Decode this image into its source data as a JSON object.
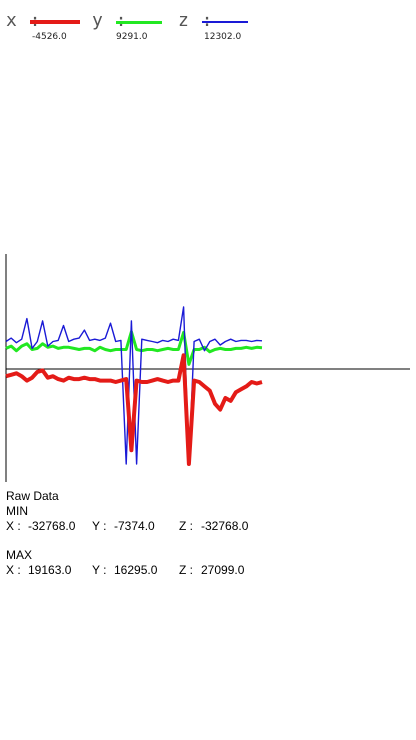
{
  "legend": {
    "x": {
      "letter": "x :",
      "value": "-4526.0",
      "color": "#e41b17"
    },
    "y": {
      "letter": "y :",
      "value": "9291.0",
      "color": "#22e822"
    },
    "z": {
      "letter": "z :",
      "value": "12302.0",
      "color": "#1a1ad6"
    }
  },
  "raw": {
    "title": "Raw Data",
    "min": {
      "title": "MIN",
      "x_label": "X :",
      "x_value": "-32768.0",
      "y_label": "Y :",
      "y_value": "-7374.0",
      "z_label": "Z :",
      "z_value": "-32768.0"
    },
    "max": {
      "title": "MAX",
      "x_label": "X :",
      "x_value": "19163.0",
      "y_label": "Y :",
      "y_value": "16295.0",
      "z_label": "Z :",
      "z_value": "27099.0"
    }
  },
  "chart_data": {
    "type": "line",
    "title": "",
    "xlabel": "",
    "ylabel": "",
    "ylim": [
      -32768,
      32768
    ],
    "grid": false,
    "legend_placement": "top-left",
    "series": [
      {
        "color": "#e41b17",
        "values": [
          -2500,
          -2000,
          -1500,
          -2500,
          -4000,
          -3000,
          -1000,
          -500,
          -3000,
          -2500,
          -3500,
          -4000,
          -3000,
          -3500,
          -3500,
          -3000,
          -3500,
          -3500,
          -4000,
          -4000,
          -4000,
          -4500,
          -4000,
          -3500,
          -28000,
          -4000,
          -4500,
          -4500,
          -4000,
          -3500,
          -4000,
          -4500,
          -4000,
          -4000,
          6000,
          -32768,
          -4000,
          -4500,
          -6000,
          -7500,
          -12000,
          -14000,
          -10000,
          -11000,
          -8000,
          -7000,
          -6000,
          -4500,
          -5000,
          -4526
        ]
      },
      {
        "color": "#22e822",
        "values": [
          9000,
          10000,
          8000,
          10000,
          11000,
          8500,
          9000,
          11000,
          9500,
          10000,
          9000,
          9500,
          9500,
          9000,
          8500,
          9000,
          9000,
          8000,
          9500,
          8500,
          8000,
          8500,
          8500,
          8500,
          16295,
          8500,
          8000,
          8500,
          8500,
          8000,
          8500,
          9000,
          8500,
          8500,
          16000,
          2000,
          8500,
          8500,
          9500,
          7500,
          8500,
          9000,
          8500,
          8500,
          9000,
          9000,
          9500,
          9000,
          9500,
          9291
        ]
      },
      {
        "color": "#1a1ad6",
        "values": [
          12000,
          13500,
          11500,
          13000,
          22000,
          9000,
          12000,
          21000,
          10000,
          12000,
          12500,
          19000,
          12000,
          13000,
          13500,
          17000,
          12500,
          13000,
          12500,
          13500,
          20000,
          12000,
          12500,
          -32768,
          21000,
          -32768,
          13000,
          12500,
          12000,
          11500,
          12500,
          12000,
          13000,
          12500,
          27099,
          -32768,
          12000,
          13000,
          8000,
          12000,
          13000,
          10500,
          12000,
          13000,
          12000,
          12500,
          12500,
          12000,
          12500,
          12302
        ]
      }
    ]
  }
}
